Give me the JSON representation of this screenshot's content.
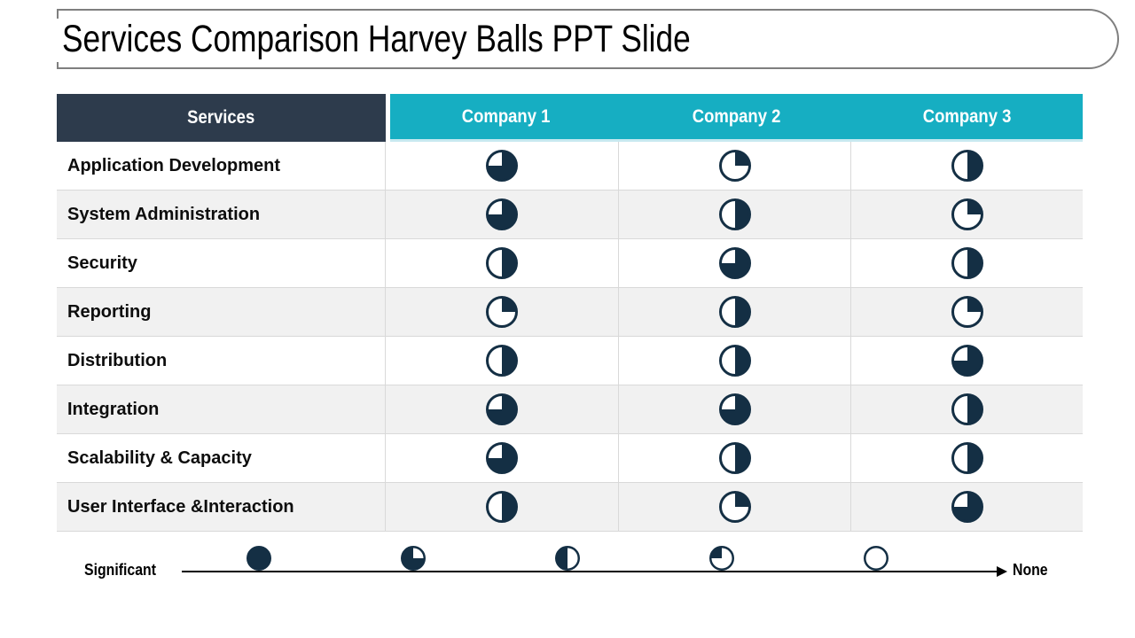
{
  "title": "Services Comparison Harvey Balls PPT Slide",
  "colors": {
    "ball": "#142f44",
    "services_header_bg": "#2d3b4c",
    "company_header_bg": "#16aec2",
    "header_underline": "#c7e9f0",
    "alt_row_bg": "#f1f1f1",
    "grid_line": "#d9d9d9",
    "header_text": "#ffffff",
    "body_text": "#0d0d0d"
  },
  "table": {
    "services_header": "Services",
    "company_headers": [
      "Company 1",
      "Company 2",
      "Company 3"
    ],
    "rows": [
      {
        "service": "Application Development",
        "values": [
          0.75,
          0.25,
          0.5
        ]
      },
      {
        "service": "System Administration",
        "values": [
          0.75,
          0.5,
          0.25
        ]
      },
      {
        "service": "Security",
        "values": [
          0.5,
          0.75,
          0.5
        ]
      },
      {
        "service": "Reporting",
        "values": [
          0.25,
          0.5,
          0.25
        ]
      },
      {
        "service": "Distribution",
        "values": [
          0.5,
          0.5,
          0.75
        ]
      },
      {
        "service": "Integration",
        "values": [
          0.75,
          0.75,
          0.5
        ]
      },
      {
        "service": "Scalability & Capacity",
        "values": [
          0.75,
          0.5,
          0.5
        ]
      },
      {
        "service": "User Interface &Interaction",
        "values": [
          0.5,
          0.25,
          0.75
        ]
      }
    ]
  },
  "legend": {
    "left_label": "Significant",
    "right_label": "None",
    "scale": [
      1,
      0.75,
      0.5,
      0.25,
      0
    ]
  }
}
